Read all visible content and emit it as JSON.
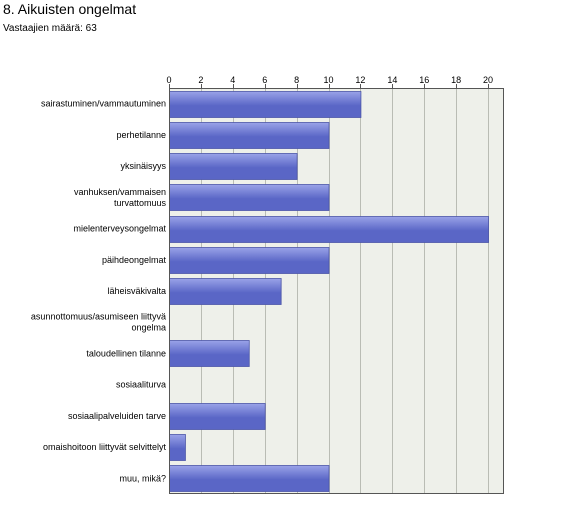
{
  "header": {
    "title": "8. Aikuisten ongelmat",
    "respondents": "Vastaajien määrä: 63"
  },
  "colors": {
    "bar_fill_light": "#9aa3e8",
    "bar_fill_dark": "#5a66c6",
    "bar_stroke": "#4b55a8",
    "plot_background": "#eef0ea",
    "grid_line": "#b9bcb4",
    "axis_line": "#555555"
  },
  "chart_data": {
    "type": "bar",
    "orientation": "horizontal",
    "title": "8. Aikuisten ongelmat",
    "xlabel": "",
    "ylabel": "",
    "xlim": [
      0,
      21
    ],
    "ticks": [
      0,
      2,
      4,
      6,
      8,
      10,
      12,
      14,
      16,
      18,
      20
    ],
    "grid": true,
    "categories": [
      [
        "sairastuminen/vammautuminen"
      ],
      [
        "perhetilanne"
      ],
      [
        "yksinäisyys"
      ],
      [
        "vanhuksen/vammaisen",
        "turvattomuus"
      ],
      [
        "mielenterveysongelmat"
      ],
      [
        "päihdeongelmat"
      ],
      [
        "läheisväkivalta"
      ],
      [
        "asunnottomuus/asumiseen liittyvä",
        "ongelma"
      ],
      [
        "taloudellinen tilanne"
      ],
      [
        "sosiaaliturva"
      ],
      [
        "sosiaalipalveluiden tarve"
      ],
      [
        "omaishoitoon liittyvät selvittelyt"
      ],
      [
        "muu, mikä?"
      ]
    ],
    "values": [
      12,
      10,
      8,
      10,
      20,
      10,
      7,
      0,
      5,
      0,
      6,
      1,
      10
    ]
  }
}
